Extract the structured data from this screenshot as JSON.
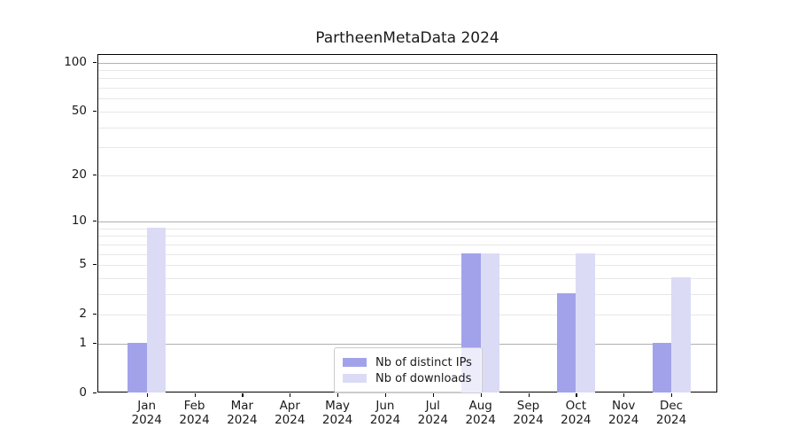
{
  "title": "PartheenMetaData 2024",
  "chart_data": {
    "type": "bar",
    "title": "PartheenMetaData 2024",
    "categories": [
      "Jan 2024",
      "Feb 2024",
      "Mar 2024",
      "Apr 2024",
      "May 2024",
      "Jun 2024",
      "Jul 2024",
      "Aug 2024",
      "Sep 2024",
      "Oct 2024",
      "Nov 2024",
      "Dec 2024"
    ],
    "x_tick_months": [
      "Jan",
      "Feb",
      "Mar",
      "Apr",
      "May",
      "Jun",
      "Jul",
      "Aug",
      "Sep",
      "Oct",
      "Nov",
      "Dec"
    ],
    "x_tick_year": "2024",
    "series": [
      {
        "name": "Nb of distinct IPs",
        "color": "#a2a2eb",
        "values": [
          1,
          0,
          0,
          0,
          0,
          0,
          0,
          6,
          0,
          3,
          0,
          1
        ]
      },
      {
        "name": "Nb of downloads",
        "color": "#dbdbf6",
        "values": [
          9,
          0,
          0,
          0,
          0,
          0,
          0,
          6,
          0,
          6,
          0,
          4
        ]
      }
    ],
    "y_axis": {
      "scale": "log1p",
      "tick_values": [
        0,
        1,
        2,
        5,
        10,
        20,
        50,
        100
      ],
      "major_gridlines": [
        1,
        10,
        100
      ],
      "minor_gridlines": [
        2,
        3,
        4,
        5,
        6,
        7,
        8,
        9,
        20,
        30,
        40,
        50,
        60,
        70,
        80,
        90
      ],
      "ylim": [
        0,
        112
      ],
      "grid": true
    },
    "legend": {
      "position": "lower-center",
      "frame": true
    }
  },
  "colors": {
    "major_grid": "#b0b0b0",
    "minor_grid": "#e7e7e7",
    "spine": "#000000",
    "background": "#ffffff",
    "text": "#1a1a1a"
  }
}
